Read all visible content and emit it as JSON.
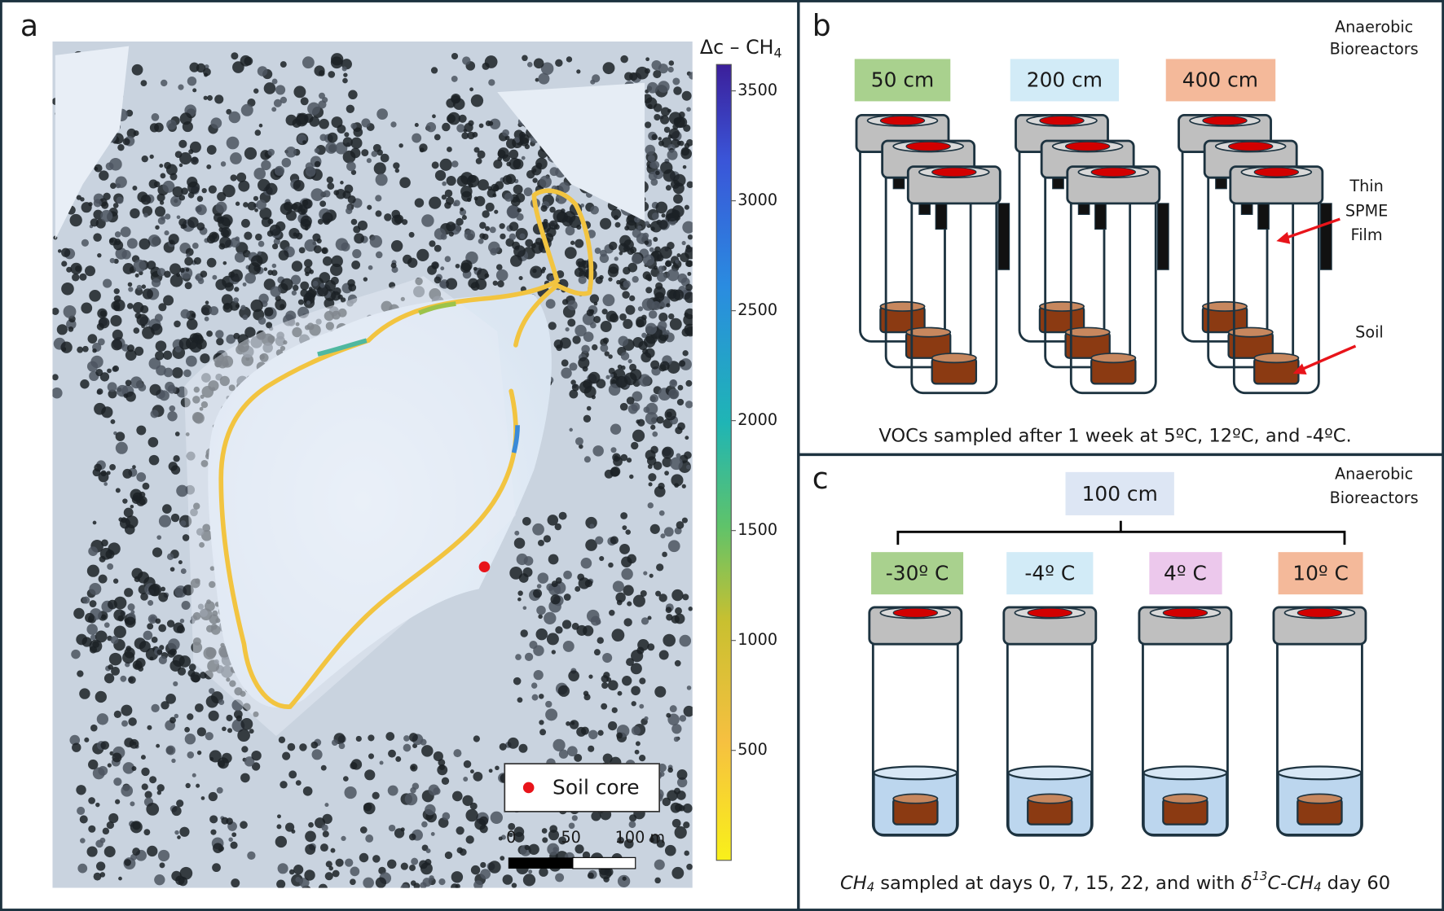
{
  "panel_a": {
    "label": "a",
    "colorbar": {
      "title": "Δc – CH",
      "title_sub": "4",
      "lim": [
        0,
        3620
      ],
      "ticks": [
        500,
        1000,
        1500,
        2000,
        2500,
        3000,
        3500
      ]
    },
    "legend": "Soil core",
    "scale_bar": [
      "0",
      "50",
      "100 m"
    ]
  },
  "panel_b": {
    "label": "b",
    "note": [
      "Anaerobic",
      "Bioreactors"
    ],
    "depths": [
      "50 cm",
      "200 cm",
      "400 cm"
    ],
    "film_label": [
      "Thin",
      "SPME",
      "Film"
    ],
    "soil_label": "Soil",
    "caption": "VOCs sampled after 1 week at 5ºC, 12ºC, and -4ºC."
  },
  "panel_c": {
    "label": "c",
    "note": [
      "Anaerobic",
      "Bioreactors"
    ],
    "depth": "100 cm",
    "temperatures": [
      "-30º C",
      "-4º C",
      "4º C",
      "10º C"
    ],
    "caption": [
      "CH",
      "4",
      " sampled at days 0, 7, 15, 22, and with ",
      "δ",
      "13",
      "C-CH",
      "4",
      "  day 60"
    ]
  }
}
